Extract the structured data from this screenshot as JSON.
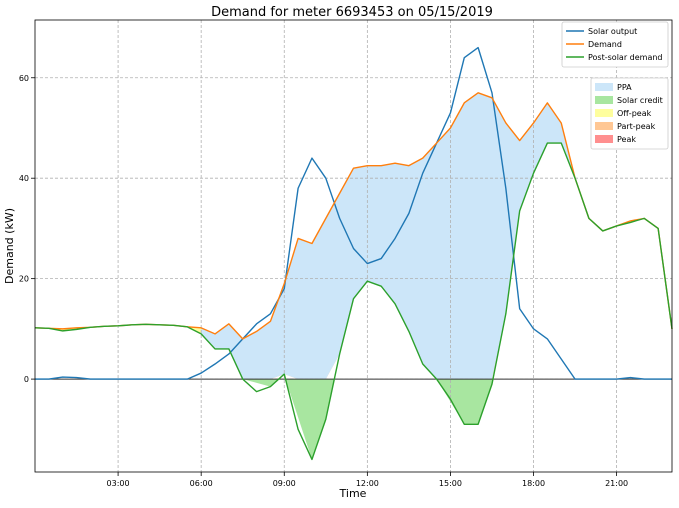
{
  "chart_data": {
    "type": "line",
    "title": "Demand for meter 6693453 on 05/15/2019",
    "xlabel": "Time",
    "ylabel": "Demand (kW)",
    "x_unit": "hour of day",
    "xlim": [
      0,
      23
    ],
    "ylim": [
      -18.5,
      71.5
    ],
    "x_ticks": [
      {
        "value": 3,
        "label": "03:00"
      },
      {
        "value": 6,
        "label": "06:00"
      },
      {
        "value": 9,
        "label": "09:00"
      },
      {
        "value": 12,
        "label": "12:00"
      },
      {
        "value": 15,
        "label": "15:00"
      },
      {
        "value": 18,
        "label": "18:00"
      },
      {
        "value": 21,
        "label": "21:00"
      }
    ],
    "y_ticks": [
      {
        "value": 0,
        "label": "0"
      },
      {
        "value": 20,
        "label": "20"
      },
      {
        "value": 40,
        "label": "40"
      },
      {
        "value": 60,
        "label": "60"
      }
    ],
    "grid": true,
    "x": [
      0,
      0.5,
      1,
      1.5,
      2,
      2.5,
      3,
      3.5,
      4,
      4.5,
      5,
      5.5,
      6,
      6.5,
      7,
      7.5,
      8,
      8.5,
      9,
      9.5,
      10,
      10.5,
      11,
      11.5,
      12,
      12.5,
      13,
      13.5,
      14,
      14.5,
      15,
      15.5,
      16,
      16.5,
      17,
      17.5,
      18,
      18.5,
      19,
      19.5,
      20,
      20.5,
      21,
      21.5,
      22,
      22.5,
      23
    ],
    "series": [
      {
        "name": "Solar output",
        "color": "#1f77b4",
        "values": [
          0,
          0,
          0.4,
          0.3,
          0,
          0,
          0,
          0,
          0,
          0,
          0,
          0,
          1.2,
          3,
          5,
          8,
          11,
          13,
          18,
          38,
          44,
          40,
          32,
          26,
          23,
          24,
          28,
          33,
          41,
          47,
          53,
          64,
          66,
          57,
          38,
          14,
          10,
          8,
          4,
          0,
          0,
          0,
          0,
          0.3,
          0,
          0,
          0
        ]
      },
      {
        "name": "Demand",
        "color": "#ff7f0e",
        "values": [
          10.2,
          10.1,
          10,
          10.2,
          10.3,
          10.5,
          10.6,
          10.8,
          10.9,
          10.8,
          10.7,
          10.4,
          10.2,
          9,
          11,
          8,
          9.5,
          11.5,
          19,
          28,
          27,
          32,
          37,
          42,
          42.5,
          42.5,
          43,
          42.5,
          44,
          47,
          50,
          55,
          57,
          56,
          51,
          47.5,
          51,
          55,
          51,
          40,
          32,
          29.5,
          30.5,
          31.5,
          32,
          30,
          10
        ]
      },
      {
        "name": "Post-solar demand",
        "color": "#2ca02c",
        "values": [
          10.2,
          10.1,
          9.6,
          9.9,
          10.3,
          10.5,
          10.6,
          10.8,
          10.9,
          10.8,
          10.7,
          10.4,
          9,
          6,
          6,
          0,
          -2.5,
          -1.5,
          1,
          -10,
          -16,
          -8,
          5,
          16,
          19.5,
          18.5,
          15,
          9.5,
          3,
          0,
          -4,
          -9,
          -9,
          -1,
          13,
          33.5,
          41,
          47,
          47,
          40,
          32,
          29.5,
          30.5,
          31.2,
          32,
          30,
          10
        ]
      }
    ],
    "regions": [
      {
        "name": "PPA",
        "color": "#cce6f9",
        "between": [
          "Post-solar demand",
          "Demand"
        ],
        "sign": "positive",
        "where": "solar output between Post-solar demand and Demand"
      },
      {
        "name": "Solar credit",
        "color": "#a8e6a0",
        "below_zero_of": "Post-solar demand"
      },
      {
        "name": "Off-peak",
        "color": "#fefe9e",
        "x_range": [
          0,
          6
        ]
      },
      {
        "name": "Part-peak",
        "color": "#ffc794",
        "x_ranges": [
          [
            6,
            16.7
          ],
          [
            21,
            23
          ]
        ]
      },
      {
        "name": "Peak",
        "color": "#ff8f8f",
        "x_range": [
          16.7,
          21
        ]
      }
    ],
    "legend_lines": [
      "Solar output",
      "Demand",
      "Post-solar demand"
    ],
    "legend_patches": [
      "PPA",
      "Solar credit",
      "Off-peak",
      "Part-peak",
      "Peak"
    ],
    "legend_position": "top-right"
  }
}
